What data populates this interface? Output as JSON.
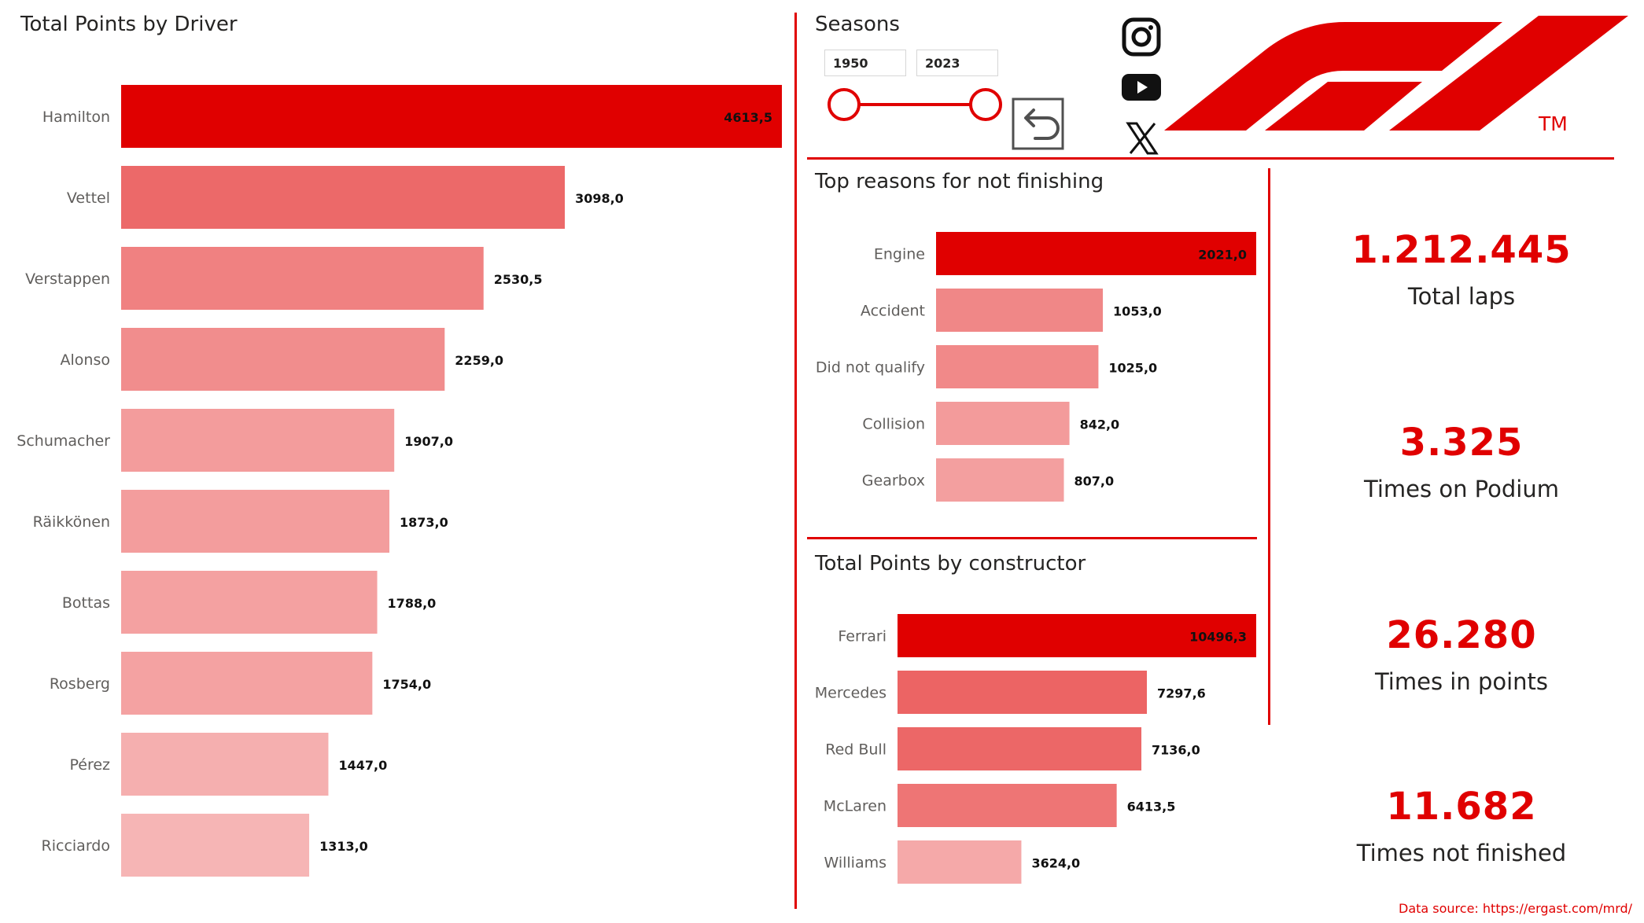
{
  "colors": {
    "accent": "#e00000",
    "text": "#252423"
  },
  "chart_data": [
    {
      "id": "drivers",
      "type": "bar",
      "orientation": "horizontal",
      "title": "Total Points by Driver",
      "categories": [
        "Hamilton",
        "Vettel",
        "Verstappen",
        "Alonso",
        "Schumacher",
        "Räikkönen",
        "Bottas",
        "Rosberg",
        "Pérez",
        "Ricciardo"
      ],
      "values": [
        4613.5,
        3098.0,
        2530.5,
        2259.0,
        1907.0,
        1873.0,
        1788.0,
        1754.0,
        1447.0,
        1313.0
      ],
      "value_labels": [
        "4613,5",
        "3098,0",
        "2530,5",
        "2259,0",
        "1907,0",
        "1873,0",
        "1788,0",
        "1754,0",
        "1447,0",
        "1313,0"
      ],
      "xlim": [
        0,
        4613.5
      ],
      "grid": false
    },
    {
      "id": "reasons",
      "type": "bar",
      "orientation": "horizontal",
      "title": "Top reasons for not finishing",
      "categories": [
        "Engine",
        "Accident",
        "Did not qualify",
        "Collision",
        "Gearbox"
      ],
      "values": [
        2021.0,
        1053.0,
        1025.0,
        842.0,
        807.0
      ],
      "value_labels": [
        "2021,0",
        "1053,0",
        "1025,0",
        "842,0",
        "807,0"
      ],
      "xlim": [
        0,
        2021.0
      ],
      "grid": false
    },
    {
      "id": "constructors",
      "type": "bar",
      "orientation": "horizontal",
      "title": "Total Points by constructor",
      "categories": [
        "Ferrari",
        "Mercedes",
        "Red Bull",
        "McLaren",
        "Williams"
      ],
      "values": [
        10496.3,
        7297.6,
        7136.0,
        6413.5,
        3624.0
      ],
      "value_labels": [
        "10496,3",
        "7297,6",
        "7136,0",
        "6413,5",
        "3624,0"
      ],
      "xlim": [
        0,
        10496.3
      ],
      "grid": false
    }
  ],
  "seasons": {
    "title": "Seasons",
    "start": "1950",
    "end": "2023"
  },
  "kpis": [
    {
      "value": "1.212.445",
      "label": "Total laps"
    },
    {
      "value": "3.325",
      "label": "Times on Podium"
    },
    {
      "value": "26.280",
      "label": "Times in points"
    },
    {
      "value": "11.682",
      "label": "Times not finished"
    }
  ],
  "social": [
    "instagram-icon",
    "youtube-icon",
    "x-icon"
  ],
  "logo": {
    "mark": "TM"
  },
  "footer": {
    "source": "Data source: https://ergast.com/mrd/"
  }
}
